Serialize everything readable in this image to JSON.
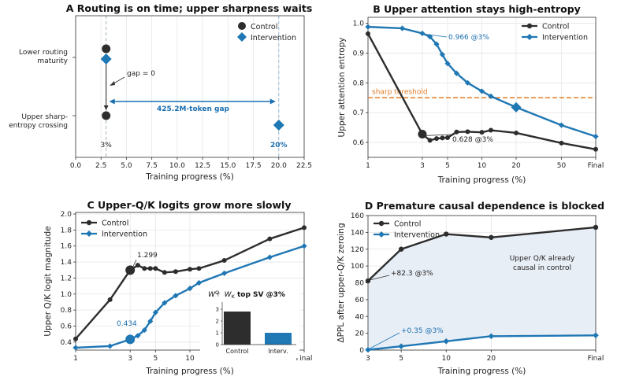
{
  "colors": {
    "control": "#2d2d2d",
    "intervention": "#1f77b4",
    "accent_blue": "#1a6fb0",
    "threshold": "#e07b25",
    "shade": "#e8eef6"
  },
  "chart_data": [
    {
      "id": "A",
      "type": "scatter",
      "title": "A  Routing is on time; upper sharpness waits",
      "xlabel": "Training progress (%)",
      "xlim": [
        0,
        22.5
      ],
      "xticks": [
        "0.0",
        "2.5",
        "5.0",
        "7.5",
        "10.0",
        "12.5",
        "15.0",
        "17.5",
        "20.0",
        "22.5"
      ],
      "categories": [
        "Lower routing maturity",
        "Upper sharp-entropy crossing"
      ],
      "series": [
        {
          "name": "Control",
          "x": [
            3,
            3
          ]
        },
        {
          "name": "Intervention",
          "x": [
            3,
            20
          ]
        }
      ],
      "annotations": {
        "gap_zero": "gap = 0",
        "gap_big": "425.2M-token gap",
        "label_3": "3%",
        "label_20": "20%"
      },
      "legend": "top-right"
    },
    {
      "id": "B",
      "type": "line",
      "title": "B  Upper attention stays high-entropy",
      "xlabel": "Training progress (%)",
      "ylabel": "Upper attention entropy",
      "xscale": "log",
      "xticks": [
        "1",
        "3",
        "5",
        "10",
        "20",
        "50",
        "Final"
      ],
      "ylim": [
        0.55,
        1.02
      ],
      "yticks": [
        "0.6",
        "0.7",
        "0.8",
        "0.9",
        "1.0"
      ],
      "series": [
        {
          "name": "Control",
          "x": [
            1,
            3,
            3.5,
            4,
            4.5,
            5,
            6,
            7.5,
            10,
            12,
            20,
            50,
            100
          ],
          "y": [
            0.965,
            0.628,
            0.607,
            0.613,
            0.615,
            0.616,
            0.635,
            0.636,
            0.634,
            0.641,
            0.632,
            0.598,
            0.577
          ]
        },
        {
          "name": "Intervention",
          "x": [
            1,
            2,
            3,
            3.5,
            4,
            4.5,
            5,
            6,
            7.5,
            10,
            12,
            20,
            50,
            100
          ],
          "y": [
            0.988,
            0.983,
            0.966,
            0.955,
            0.93,
            0.895,
            0.865,
            0.832,
            0.8,
            0.772,
            0.755,
            0.718,
            0.658,
            0.62
          ]
        }
      ],
      "threshold": {
        "value": 0.75,
        "label": "sharp threshold"
      },
      "annotations": {
        "intervention_3": "0.966 @3%",
        "control_3": "0.628 @3%"
      },
      "legend": "top-right"
    },
    {
      "id": "C",
      "type": "line",
      "title": "C  Upper-Q/K logits grow more slowly",
      "xlabel": "Training progress (%)",
      "ylabel": "Upper Q/K logit magnitude",
      "xscale": "log",
      "xticks": [
        "1",
        "3",
        "5",
        "10",
        "Final"
      ],
      "ylim": [
        0.3,
        2.02
      ],
      "yticks": [
        "0.4",
        "0.6",
        "0.8",
        "1.0",
        "1.2",
        "1.4",
        "1.6",
        "1.8",
        "2.0"
      ],
      "series": [
        {
          "name": "Control",
          "x": [
            1,
            2,
            3,
            3.5,
            4,
            4.5,
            5,
            6,
            7.5,
            10,
            12,
            20,
            50,
            100
          ],
          "y": [
            0.44,
            0.93,
            1.299,
            1.36,
            1.32,
            1.32,
            1.32,
            1.27,
            1.28,
            1.31,
            1.32,
            1.42,
            1.69,
            1.83
          ]
        },
        {
          "name": "Intervention",
          "x": [
            1,
            2,
            3,
            3.5,
            4,
            4.5,
            5,
            6,
            7.5,
            10,
            12,
            20,
            50,
            100
          ],
          "y": [
            0.33,
            0.35,
            0.434,
            0.48,
            0.55,
            0.66,
            0.77,
            0.89,
            0.98,
            1.07,
            1.14,
            1.26,
            1.46,
            1.6
          ]
        }
      ],
      "annotations": {
        "control_3": "1.299",
        "intervention_3": "0.434"
      },
      "legend": "top-left",
      "inset": {
        "type": "bar",
        "title": "top SV @3%",
        "categories": [
          "Control",
          "Interv."
        ],
        "values": [
          2.8,
          1.0
        ],
        "ylim": [
          0,
          3.6
        ],
        "yticks": [
          "0",
          "1",
          "2",
          "3"
        ]
      }
    },
    {
      "id": "D",
      "type": "area",
      "title": "D  Premature causal dependence is blocked",
      "xlabel": "Training progress (%)",
      "ylabel": "ΔPPL after upper-Q/K zeroing",
      "xscale": "log",
      "xticks": [
        "3",
        "5",
        "10",
        "20",
        "Final"
      ],
      "ylim": [
        0,
        160
      ],
      "yticks": [
        "0",
        "20",
        "40",
        "60",
        "80",
        "100",
        "120",
        "140",
        "160"
      ],
      "series": [
        {
          "name": "Control",
          "x": [
            3,
            5,
            10,
            20,
            100
          ],
          "y": [
            82.3,
            120,
            138,
            134,
            146
          ]
        },
        {
          "name": "Intervention",
          "x": [
            3,
            5,
            10,
            20,
            100
          ],
          "y": [
            0.35,
            4.5,
            10.5,
            16.5,
            17.5
          ]
        }
      ],
      "annotations": {
        "control_3": "+82.3 @3%",
        "intervention_3": "+0.35 @3%",
        "note_line1": "Upper Q/K already",
        "note_line2": "causal in control"
      },
      "legend": "top-left"
    }
  ]
}
